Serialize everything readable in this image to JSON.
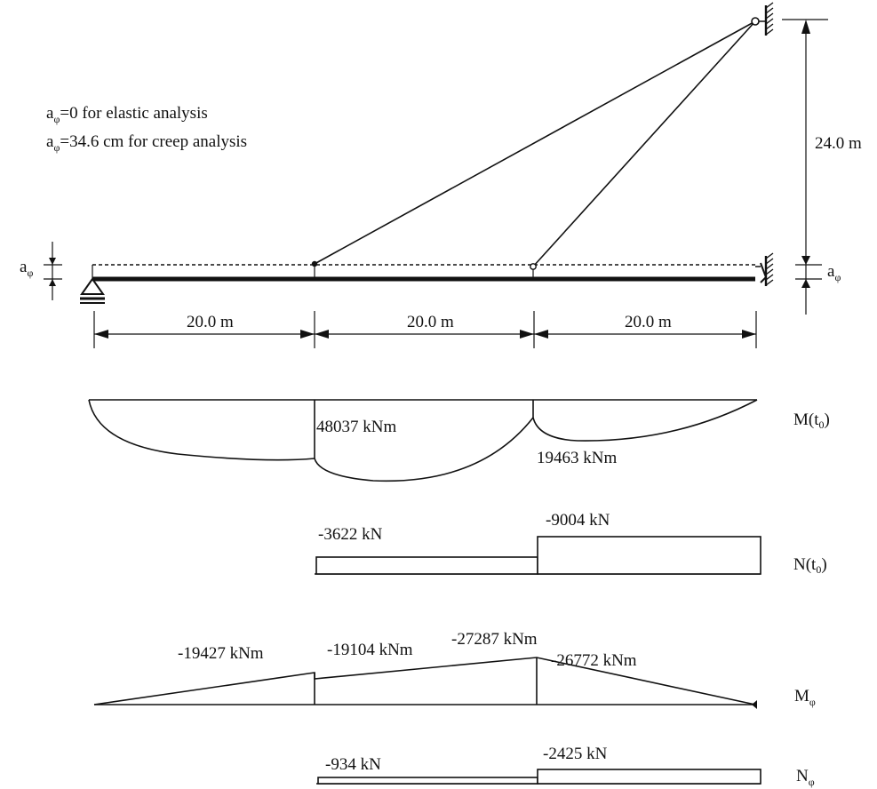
{
  "notes": {
    "elastic_prefix": "a",
    "elastic_sub": "φ",
    "elastic_text": "=0 for elastic analysis",
    "creep_prefix": "a",
    "creep_sub": "φ",
    "creep_text": "=34.6 cm  for creep analysis"
  },
  "dimensions": {
    "height": "24.0 m",
    "span_1": "20.0 m",
    "span_2": "20.0 m",
    "span_3": "20.0 m",
    "offset_base": "a",
    "offset_sub": "φ"
  },
  "diagrams": {
    "moment_t0": {
      "label_base": "M(t",
      "label_sub": "0",
      "label_end": ")",
      "values": [
        "48037 kNm",
        "19463 kNm"
      ]
    },
    "axial_t0": {
      "label_base": "N(t",
      "label_sub": "0",
      "label_end": ")",
      "values": [
        "-3622 kN",
        "-9004 kN"
      ]
    },
    "moment_phi": {
      "label_base": "M",
      "label_sub": "φ",
      "values": [
        "-19427 kNm",
        "-19104 kNm",
        "-27287 kNm",
        "-26772 kNm"
      ]
    },
    "axial_phi": {
      "label_base": "N",
      "label_sub": "φ",
      "values": [
        "-934 kN",
        "-2425 kN"
      ]
    }
  }
}
